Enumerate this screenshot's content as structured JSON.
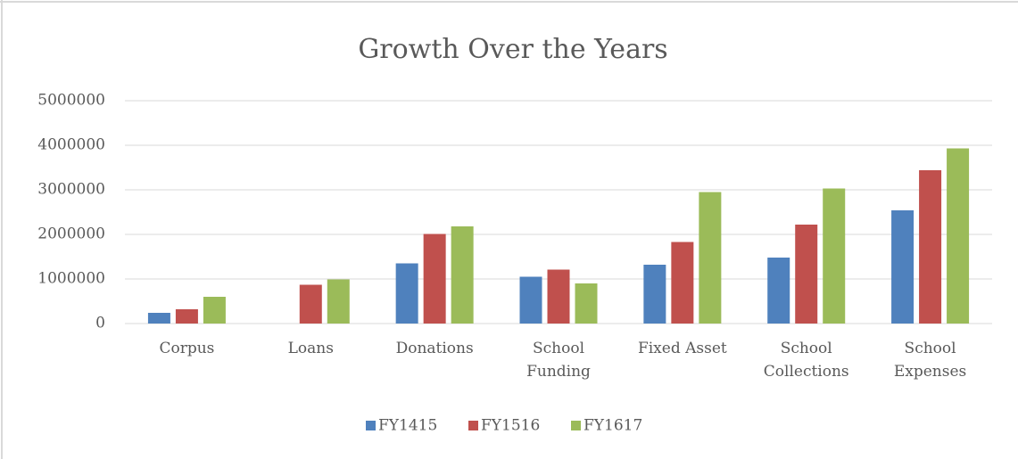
{
  "chart_data": {
    "type": "bar",
    "title": "Growth Over the Years",
    "categories": [
      "Corpus",
      "Loans",
      "Donations",
      "School Funding",
      "Fixed Asset",
      "School Collections",
      "School Expenses"
    ],
    "series": [
      {
        "name": "FY1415",
        "color": "#4f81bd",
        "values": [
          240000,
          0,
          1350000,
          1050000,
          1320000,
          1480000,
          2540000
        ]
      },
      {
        "name": "FY1516",
        "color": "#c0504d",
        "values": [
          320000,
          870000,
          2010000,
          1210000,
          1830000,
          2220000,
          3440000
        ]
      },
      {
        "name": "FY1617",
        "color": "#9bbb59",
        "values": [
          600000,
          990000,
          2180000,
          900000,
          2950000,
          3030000,
          3930000
        ]
      }
    ],
    "ylim": [
      0,
      5000000
    ],
    "yticks": [
      0,
      1000000,
      2000000,
      3000000,
      4000000,
      5000000
    ],
    "grid": true,
    "legend": "bottom"
  }
}
